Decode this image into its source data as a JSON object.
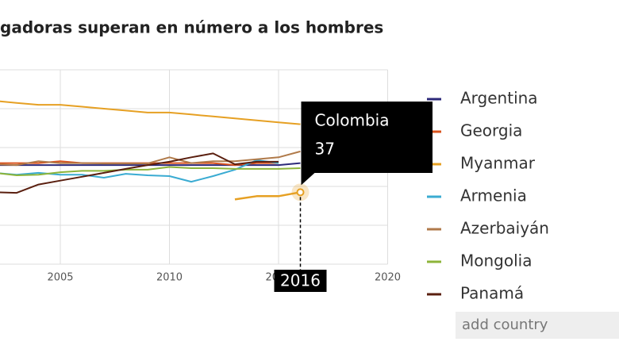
{
  "chart_data": {
    "type": "line",
    "title": "gadoras superan en número a los hombres",
    "x": [
      2002,
      2003,
      2004,
      2005,
      2006,
      2007,
      2008,
      2009,
      2010,
      2011,
      2012,
      2013,
      2014,
      2015,
      2016
    ],
    "xlim": [
      2000,
      2020
    ],
    "xticks": [
      2005,
      2010,
      2015,
      2020
    ],
    "ylim": [
      0,
      100
    ],
    "grid": true,
    "series": [
      {
        "name": "Argentina",
        "color": "#2d2a7a",
        "values": [
          51,
          51,
          51,
          51,
          51,
          51,
          51,
          51,
          51,
          51,
          51,
          51,
          51,
          51,
          52
        ]
      },
      {
        "name": "Georgia",
        "color": "#d9531e",
        "values": [
          52,
          52,
          52,
          53,
          52,
          52,
          52,
          52,
          52,
          52,
          52,
          51,
          52,
          52,
          null
        ]
      },
      {
        "name": "Myanmar",
        "color": "#e6a023",
        "values": [
          84,
          83,
          82,
          82,
          81,
          80,
          79,
          78,
          78,
          77,
          76,
          75,
          74,
          73,
          72
        ]
      },
      {
        "name": "Armenia",
        "color": "#3aabd2",
        "values": [
          47,
          46,
          47,
          46,
          46,
          44.5,
          46.5,
          45.7,
          45.3,
          42.4,
          45.3,
          48.6,
          53.5,
          52,
          null
        ]
      },
      {
        "name": "Azerbaiyán",
        "color": "#b07a4a",
        "values": [
          51.4,
          51,
          53,
          52,
          52,
          51.8,
          51.8,
          51.8,
          55,
          52,
          53,
          53,
          54,
          55,
          58
        ]
      },
      {
        "name": "Mongolia",
        "color": "#8db43a",
        "values": [
          47,
          45.7,
          46,
          47.3,
          48,
          48,
          48.6,
          48.6,
          50,
          49.4,
          49.4,
          49,
          49,
          49,
          49.4
        ]
      },
      {
        "name": "Panamá",
        "color": "#5a1f0f",
        "values": [
          37,
          36.7,
          41,
          43,
          45,
          47,
          49,
          51,
          52.7,
          55,
          57,
          51.4,
          52.7,
          52.7,
          null
        ]
      }
    ],
    "hover_series": {
      "name": "Colombia",
      "color": "#e6a023",
      "values": [
        null,
        null,
        null,
        null,
        null,
        null,
        null,
        null,
        null,
        null,
        null,
        33.3,
        35,
        35,
        37
      ]
    }
  },
  "controls": {
    "add_country": "add country"
  }
}
